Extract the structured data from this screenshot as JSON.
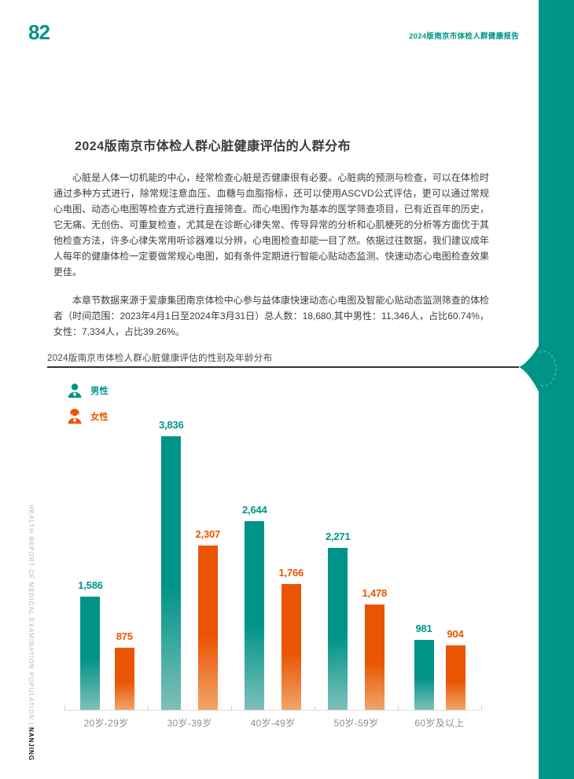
{
  "page": {
    "number": "82",
    "header_right": "2024版南京市体检人群健康报告",
    "sidebar_vertical": "HEALTH REPORT OF MEDICAL EXAMINATION POPULATION",
    "sidebar_separator": "|",
    "sidebar_city": "NANJING"
  },
  "article": {
    "title": "2024版南京市体检人群心脏健康评估的人群分布",
    "paragraph1": "心脏是人体一切机能的中心，经常检查心脏是否健康很有必要。心脏病的预测与检查，可以在体检时通过多种方式进行，除常规注意血压、血糖与血脂指标，还可以使用ASCVD公式评估，更可以通过常规心电图、动态心电图等检查方式进行直接筛查。而心电图作为基本的医学筛查项目，已有近百年的历史，它无痛、无创伤、可重复检查，尤其是在诊断心律失常、传导异常的分析和心肌梗死的分析等方面优于其他检查方法，许多心律失常用听诊器难以分辨，心电图检查却能一目了然。依据过往数据，我们建议成年人每年的健康体检一定要做常规心电图，如有条件定期进行智能心贴动态监测、快速动态心电图检查效果更佳。",
    "paragraph2": "本章节数据来源于爱康集团南京体检中心参与益体康快速动态心电图及智能心贴动态监测筛查的体检者（时间范围：2023年4月1日至2024年3月31日）总人数：18,680,其中男性：11,346人，占比60.74%，女性：7,334人，占比39.26%。"
  },
  "chart_section": {
    "title": "2024版南京市体检人群心脏健康评估的性别及年龄分布"
  },
  "colors": {
    "teal": "#009489",
    "teal_fade": "#7EC0B9",
    "orange": "#E95503",
    "orange_fade": "#F0A568",
    "axis": "#dcdcdc"
  },
  "chart_data": {
    "type": "bar",
    "title": "2024版南京市体检人群心脏健康评估的性别及年龄分布",
    "categories": [
      "20岁-29岁",
      "30岁-39岁",
      "40岁-49岁",
      "50岁-59岁",
      "60岁及以上"
    ],
    "series": [
      {
        "key": "male",
        "name": "男性",
        "color": "#009489",
        "fade": "#7EC0B9",
        "values": [
          1586,
          3836,
          2644,
          2271,
          981
        ],
        "labels": [
          "1,586",
          "3,836",
          "2,644",
          "2,271",
          "981"
        ]
      },
      {
        "key": "female",
        "name": "女性",
        "color": "#E95503",
        "fade": "#F0A568",
        "values": [
          875,
          2307,
          1766,
          1478,
          904
        ],
        "labels": [
          "875",
          "2,307",
          "1,766",
          "1,478",
          "904"
        ]
      }
    ],
    "xlabel": "",
    "ylabel": "",
    "ylim": [
      0,
      3836
    ],
    "grid": false,
    "legend_position": "top-left",
    "value_labels_shown": true
  }
}
